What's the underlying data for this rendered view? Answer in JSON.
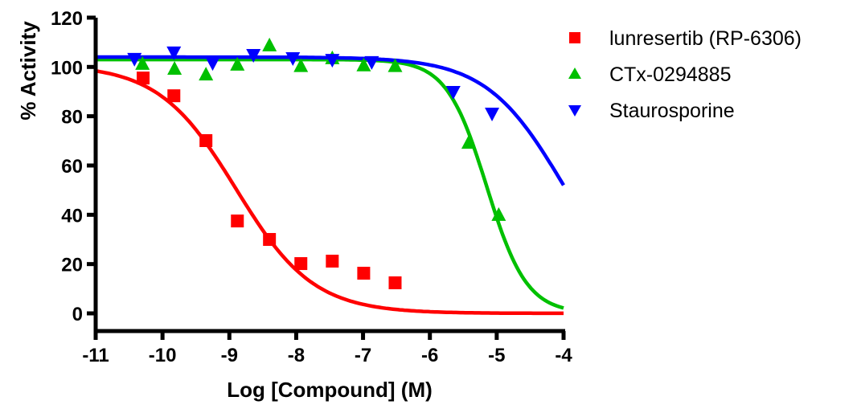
{
  "chart_data": {
    "type": "scatter",
    "title": "",
    "xlabel": "Log [Compound] (M)",
    "ylabel": "% Activity",
    "xlim": [
      -11,
      -4
    ],
    "ylim": [
      -5,
      120
    ],
    "x_ticks": [
      -11,
      -10,
      -9,
      -8,
      -7,
      -6,
      -5,
      -4
    ],
    "x_tick_labels": [
      "-11",
      "-10",
      "-9",
      "-8",
      "-7",
      "-6",
      "-5",
      "-4"
    ],
    "y_ticks": [
      0,
      20,
      40,
      60,
      80,
      100,
      120
    ],
    "y_tick_labels": [
      "0",
      "20",
      "40",
      "60",
      "80",
      "100",
      "120"
    ],
    "grid": false,
    "legend_position": "top-right-outside",
    "series": [
      {
        "name": "lunresertib (RP-6306)",
        "color": "#ff0000",
        "marker": "square",
        "x": [
          -10.29,
          -9.83,
          -9.35,
          -8.88,
          -8.4,
          -7.93,
          -7.46,
          -6.99,
          -6.52
        ],
        "y": [
          95.5,
          88.3,
          70.1,
          37.5,
          30.0,
          20.2,
          21.2,
          16.3,
          12.4
        ],
        "fit": {
          "top": 101,
          "bottom": 0,
          "logIC50": -8.9,
          "hill": 0.75
        }
      },
      {
        "name": "CTx-0294885",
        "color": "#00c000",
        "marker": "triangle-up",
        "x": [
          -10.3,
          -9.82,
          -9.35,
          -8.88,
          -8.4,
          -7.93,
          -7.46,
          -6.99,
          -6.52,
          -5.42,
          -4.97
        ],
        "y": [
          101.1,
          99.1,
          96.8,
          100.8,
          108.6,
          100.2,
          103.4,
          100.5,
          100.2,
          69.1,
          39.8
        ],
        "fit": {
          "top": 103,
          "bottom": 0,
          "logIC50": -5.15,
          "hill": 1.45
        }
      },
      {
        "name": "Staurosporine",
        "color": "#0000ff",
        "marker": "triangle-down",
        "x": [
          -10.42,
          -9.83,
          -9.25,
          -8.64,
          -8.05,
          -7.46,
          -6.87,
          -5.65,
          -5.07
        ],
        "y": [
          103.4,
          106.0,
          101.7,
          105.0,
          103.7,
          103.0,
          102.1,
          90.0,
          81.2
        ],
        "fit": {
          "top": 104,
          "bottom": 0,
          "logIC50": -4.0,
          "hill": 0.75
        }
      }
    ]
  }
}
